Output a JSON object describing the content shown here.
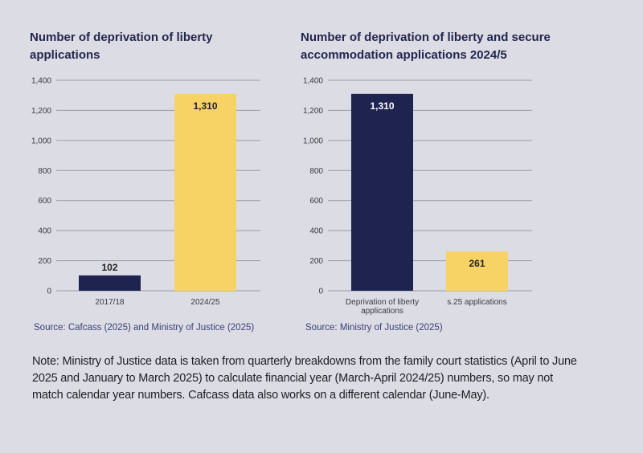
{
  "colors": {
    "navy": "#1f2350",
    "yellow": "#f7d264",
    "grid": "#9a9aa6",
    "background": "#dcdce4"
  },
  "note": "Note: Ministry of Justice data is taken from quarterly breakdowns from the family court statistics (April to June 2025 and January to March 2025) to calculate financial year (March-April 2024/25) numbers, so may not match calendar year numbers. Cafcass data also works on a different calendar (June-May).",
  "chart_data": [
    {
      "type": "bar",
      "title": "Number of deprivation of liberty applications",
      "categories": [
        "2017/18",
        "2024/25"
      ],
      "values": [
        102,
        1310
      ],
      "data_labels": [
        "102",
        "1,310"
      ],
      "bar_colors": [
        "#1f2350",
        "#f7d264"
      ],
      "label_position": [
        "above",
        "inside-top"
      ],
      "yticks": [
        "0",
        "200",
        "400",
        "600",
        "800",
        "1,000",
        "1,200",
        "1,400"
      ],
      "ylim": [
        0,
        1400
      ],
      "xlabel": "",
      "ylabel": "",
      "grid": true,
      "source": "Source: Cafcass (2025) and Ministry of Justice (2025)"
    },
    {
      "type": "bar",
      "title": "Number of deprivation of liberty and secure accommodation applications 2024/5",
      "categories": [
        [
          "Deprivation of liberty",
          "applications"
        ],
        [
          "s.25 applications"
        ]
      ],
      "values": [
        1310,
        261
      ],
      "data_labels": [
        "1,310",
        "261"
      ],
      "bar_colors": [
        "#1f2350",
        "#f7d264"
      ],
      "label_position": [
        "inside-top",
        "inside-top"
      ],
      "yticks": [
        "0",
        "200",
        "400",
        "600",
        "800",
        "1,000",
        "1,200",
        "1,400"
      ],
      "ylim": [
        0,
        1400
      ],
      "xlabel": "",
      "ylabel": "",
      "grid": true,
      "source": "Source: Ministry of Justice (2025)"
    }
  ]
}
